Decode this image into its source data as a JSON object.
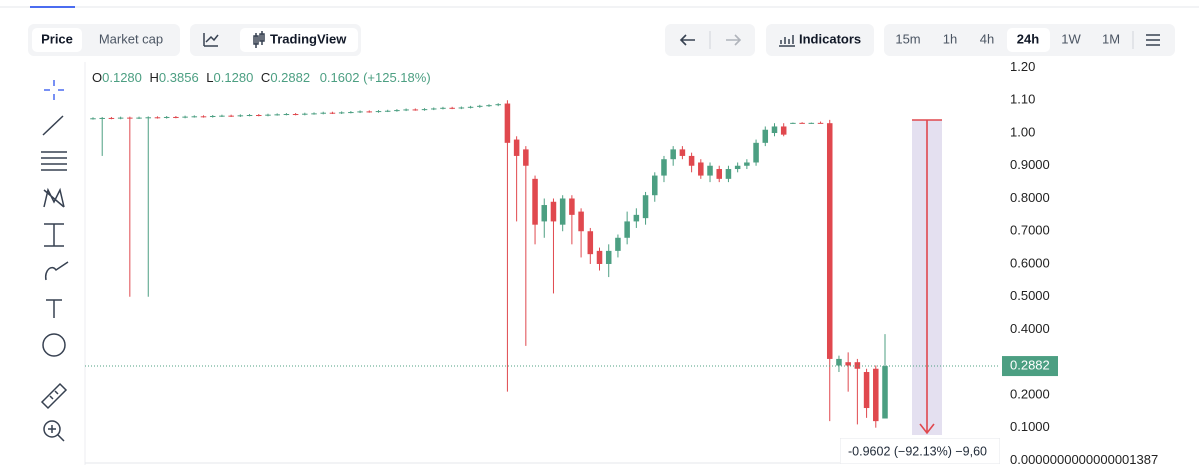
{
  "toolbar": {
    "metric_tabs": [
      "Price",
      "Market cap"
    ],
    "chart_tabs": [
      "TradingView"
    ],
    "indicators": "Indicators",
    "timeframes": [
      "15m",
      "1h",
      "4h",
      "24h",
      "1W",
      "1M"
    ]
  },
  "ohlc_legend": [
    {
      "key": "O",
      "value": "0.1280"
    },
    {
      "key": "H",
      "value": "0.3856"
    },
    {
      "key": "L",
      "value": "0.1280"
    },
    {
      "key": "C",
      "value": "0.2882"
    }
  ],
  "ohlc_change": "0.1602 (+125.18%)",
  "measure_label": "-0.9602 (−92.13%) −9,60",
  "chart_data": {
    "type": "candlestick",
    "up_color": "#4c9f82",
    "down_color": "#e0484e",
    "ylim": [
      -0.014,
      1.223
    ],
    "yticks": [
      {
        "value": 1.2,
        "label": "1.20"
      },
      {
        "value": 1.1,
        "label": "1.10"
      },
      {
        "value": 1.0,
        "label": "1.00"
      },
      {
        "value": 0.9,
        "label": "0.9000"
      },
      {
        "value": 0.8,
        "label": "0.8000"
      },
      {
        "value": 0.7,
        "label": "0.7000"
      },
      {
        "value": 0.6,
        "label": "0.6000"
      },
      {
        "value": 0.5,
        "label": "0.5000"
      },
      {
        "value": 0.4,
        "label": "0.4000"
      },
      {
        "value": 0.2,
        "label": "0.2000"
      },
      {
        "value": 0.1,
        "label": "0.1000"
      },
      {
        "value": 1.387e-16,
        "label": "0.0000000000000001387"
      }
    ],
    "grid": false,
    "candles": [
      [
        1.044,
        1.048,
        1.041,
        1.045
      ],
      [
        1.045,
        1.049,
        0.93,
        1.046
      ],
      [
        1.046,
        1.049,
        1.042,
        1.045
      ],
      [
        1.045,
        1.05,
        1.042,
        1.047
      ],
      [
        1.047,
        1.05,
        0.5,
        1.046
      ],
      [
        1.046,
        1.05,
        1.043,
        1.047
      ],
      [
        1.047,
        1.051,
        0.5,
        1.048
      ],
      [
        1.048,
        1.051,
        1.044,
        1.047
      ],
      [
        1.047,
        1.052,
        1.044,
        1.049
      ],
      [
        1.049,
        1.052,
        1.045,
        1.048
      ],
      [
        1.048,
        1.053,
        1.045,
        1.05
      ],
      [
        1.05,
        1.054,
        1.047,
        1.051
      ],
      [
        1.051,
        1.054,
        1.047,
        1.05
      ],
      [
        1.05,
        1.055,
        1.047,
        1.052
      ],
      [
        1.052,
        1.056,
        1.049,
        1.053
      ],
      [
        1.053,
        1.056,
        1.049,
        1.052
      ],
      [
        1.052,
        1.057,
        1.049,
        1.054
      ],
      [
        1.054,
        1.058,
        1.051,
        1.055
      ],
      [
        1.055,
        1.058,
        1.051,
        1.054
      ],
      [
        1.054,
        1.059,
        1.051,
        1.056
      ],
      [
        1.056,
        1.06,
        1.053,
        1.057
      ],
      [
        1.057,
        1.061,
        1.054,
        1.058
      ],
      [
        1.058,
        1.061,
        1.054,
        1.057
      ],
      [
        1.057,
        1.062,
        1.054,
        1.059
      ],
      [
        1.059,
        1.063,
        1.056,
        1.06
      ],
      [
        1.06,
        1.065,
        1.057,
        1.062
      ],
      [
        1.062,
        1.065,
        1.058,
        1.061
      ],
      [
        1.061,
        1.066,
        1.058,
        1.063
      ],
      [
        1.063,
        1.067,
        1.06,
        1.064
      ],
      [
        1.064,
        1.069,
        1.061,
        1.066
      ],
      [
        1.066,
        1.069,
        1.062,
        1.065
      ],
      [
        1.065,
        1.07,
        1.062,
        1.067
      ],
      [
        1.067,
        1.071,
        1.064,
        1.068
      ],
      [
        1.068,
        1.073,
        1.065,
        1.07
      ],
      [
        1.07,
        1.075,
        1.067,
        1.072
      ],
      [
        1.072,
        1.075,
        1.068,
        1.071
      ],
      [
        1.071,
        1.076,
        1.068,
        1.073
      ],
      [
        1.073,
        1.078,
        1.07,
        1.075
      ],
      [
        1.075,
        1.08,
        1.072,
        1.077
      ],
      [
        1.077,
        1.08,
        1.073,
        1.076
      ],
      [
        1.076,
        1.081,
        1.073,
        1.078
      ],
      [
        1.078,
        1.083,
        1.075,
        1.08
      ],
      [
        1.08,
        1.086,
        1.077,
        1.083
      ],
      [
        1.083,
        1.088,
        1.08,
        1.085
      ],
      [
        1.085,
        1.091,
        1.082,
        1.088
      ],
      [
        1.09,
        1.1,
        0.21,
        0.97
      ],
      [
        0.98,
        0.99,
        0.73,
        0.93
      ],
      [
        0.95,
        0.96,
        0.35,
        0.9
      ],
      [
        0.86,
        0.87,
        0.66,
        0.72
      ],
      [
        0.73,
        0.8,
        0.68,
        0.78
      ],
      [
        0.79,
        0.8,
        0.51,
        0.73
      ],
      [
        0.72,
        0.81,
        0.7,
        0.8
      ],
      [
        0.8,
        0.81,
        0.66,
        0.75
      ],
      [
        0.76,
        0.77,
        0.62,
        0.7
      ],
      [
        0.7,
        0.71,
        0.6,
        0.63
      ],
      [
        0.64,
        0.65,
        0.58,
        0.6
      ],
      [
        0.6,
        0.66,
        0.56,
        0.64
      ],
      [
        0.64,
        0.69,
        0.62,
        0.68
      ],
      [
        0.68,
        0.76,
        0.66,
        0.73
      ],
      [
        0.73,
        0.77,
        0.71,
        0.75
      ],
      [
        0.74,
        0.82,
        0.72,
        0.81
      ],
      [
        0.81,
        0.88,
        0.79,
        0.87
      ],
      [
        0.87,
        0.93,
        0.85,
        0.92
      ],
      [
        0.92,
        0.96,
        0.9,
        0.95
      ],
      [
        0.95,
        0.96,
        0.92,
        0.93
      ],
      [
        0.93,
        0.94,
        0.88,
        0.9
      ],
      [
        0.91,
        0.92,
        0.86,
        0.87
      ],
      [
        0.87,
        0.91,
        0.85,
        0.9
      ],
      [
        0.89,
        0.9,
        0.85,
        0.86
      ],
      [
        0.86,
        0.9,
        0.85,
        0.89
      ],
      [
        0.89,
        0.91,
        0.88,
        0.9
      ],
      [
        0.9,
        0.92,
        0.89,
        0.91
      ],
      [
        0.91,
        0.98,
        0.9,
        0.97
      ],
      [
        0.97,
        1.02,
        0.96,
        1.01
      ],
      [
        1.0,
        1.03,
        0.99,
        1.02
      ],
      [
        1.02,
        1.03,
        0.99,
        0.995
      ],
      [
        1.03,
        1.032,
        1.028,
        1.031
      ],
      [
        1.031,
        1.033,
        1.029,
        1.03
      ],
      [
        1.03,
        1.032,
        1.028,
        1.031
      ],
      [
        1.031,
        1.035,
        1.029,
        1.03
      ],
      [
        1.03,
        1.04,
        0.12,
        0.31
      ],
      [
        0.29,
        0.32,
        0.27,
        0.31
      ],
      [
        0.3,
        0.33,
        0.21,
        0.29
      ],
      [
        0.3,
        0.31,
        0.11,
        0.28
      ],
      [
        0.27,
        0.28,
        0.13,
        0.16
      ],
      [
        0.28,
        0.29,
        0.1,
        0.12
      ],
      [
        0.128,
        0.3856,
        0.128,
        0.2882
      ]
    ]
  }
}
